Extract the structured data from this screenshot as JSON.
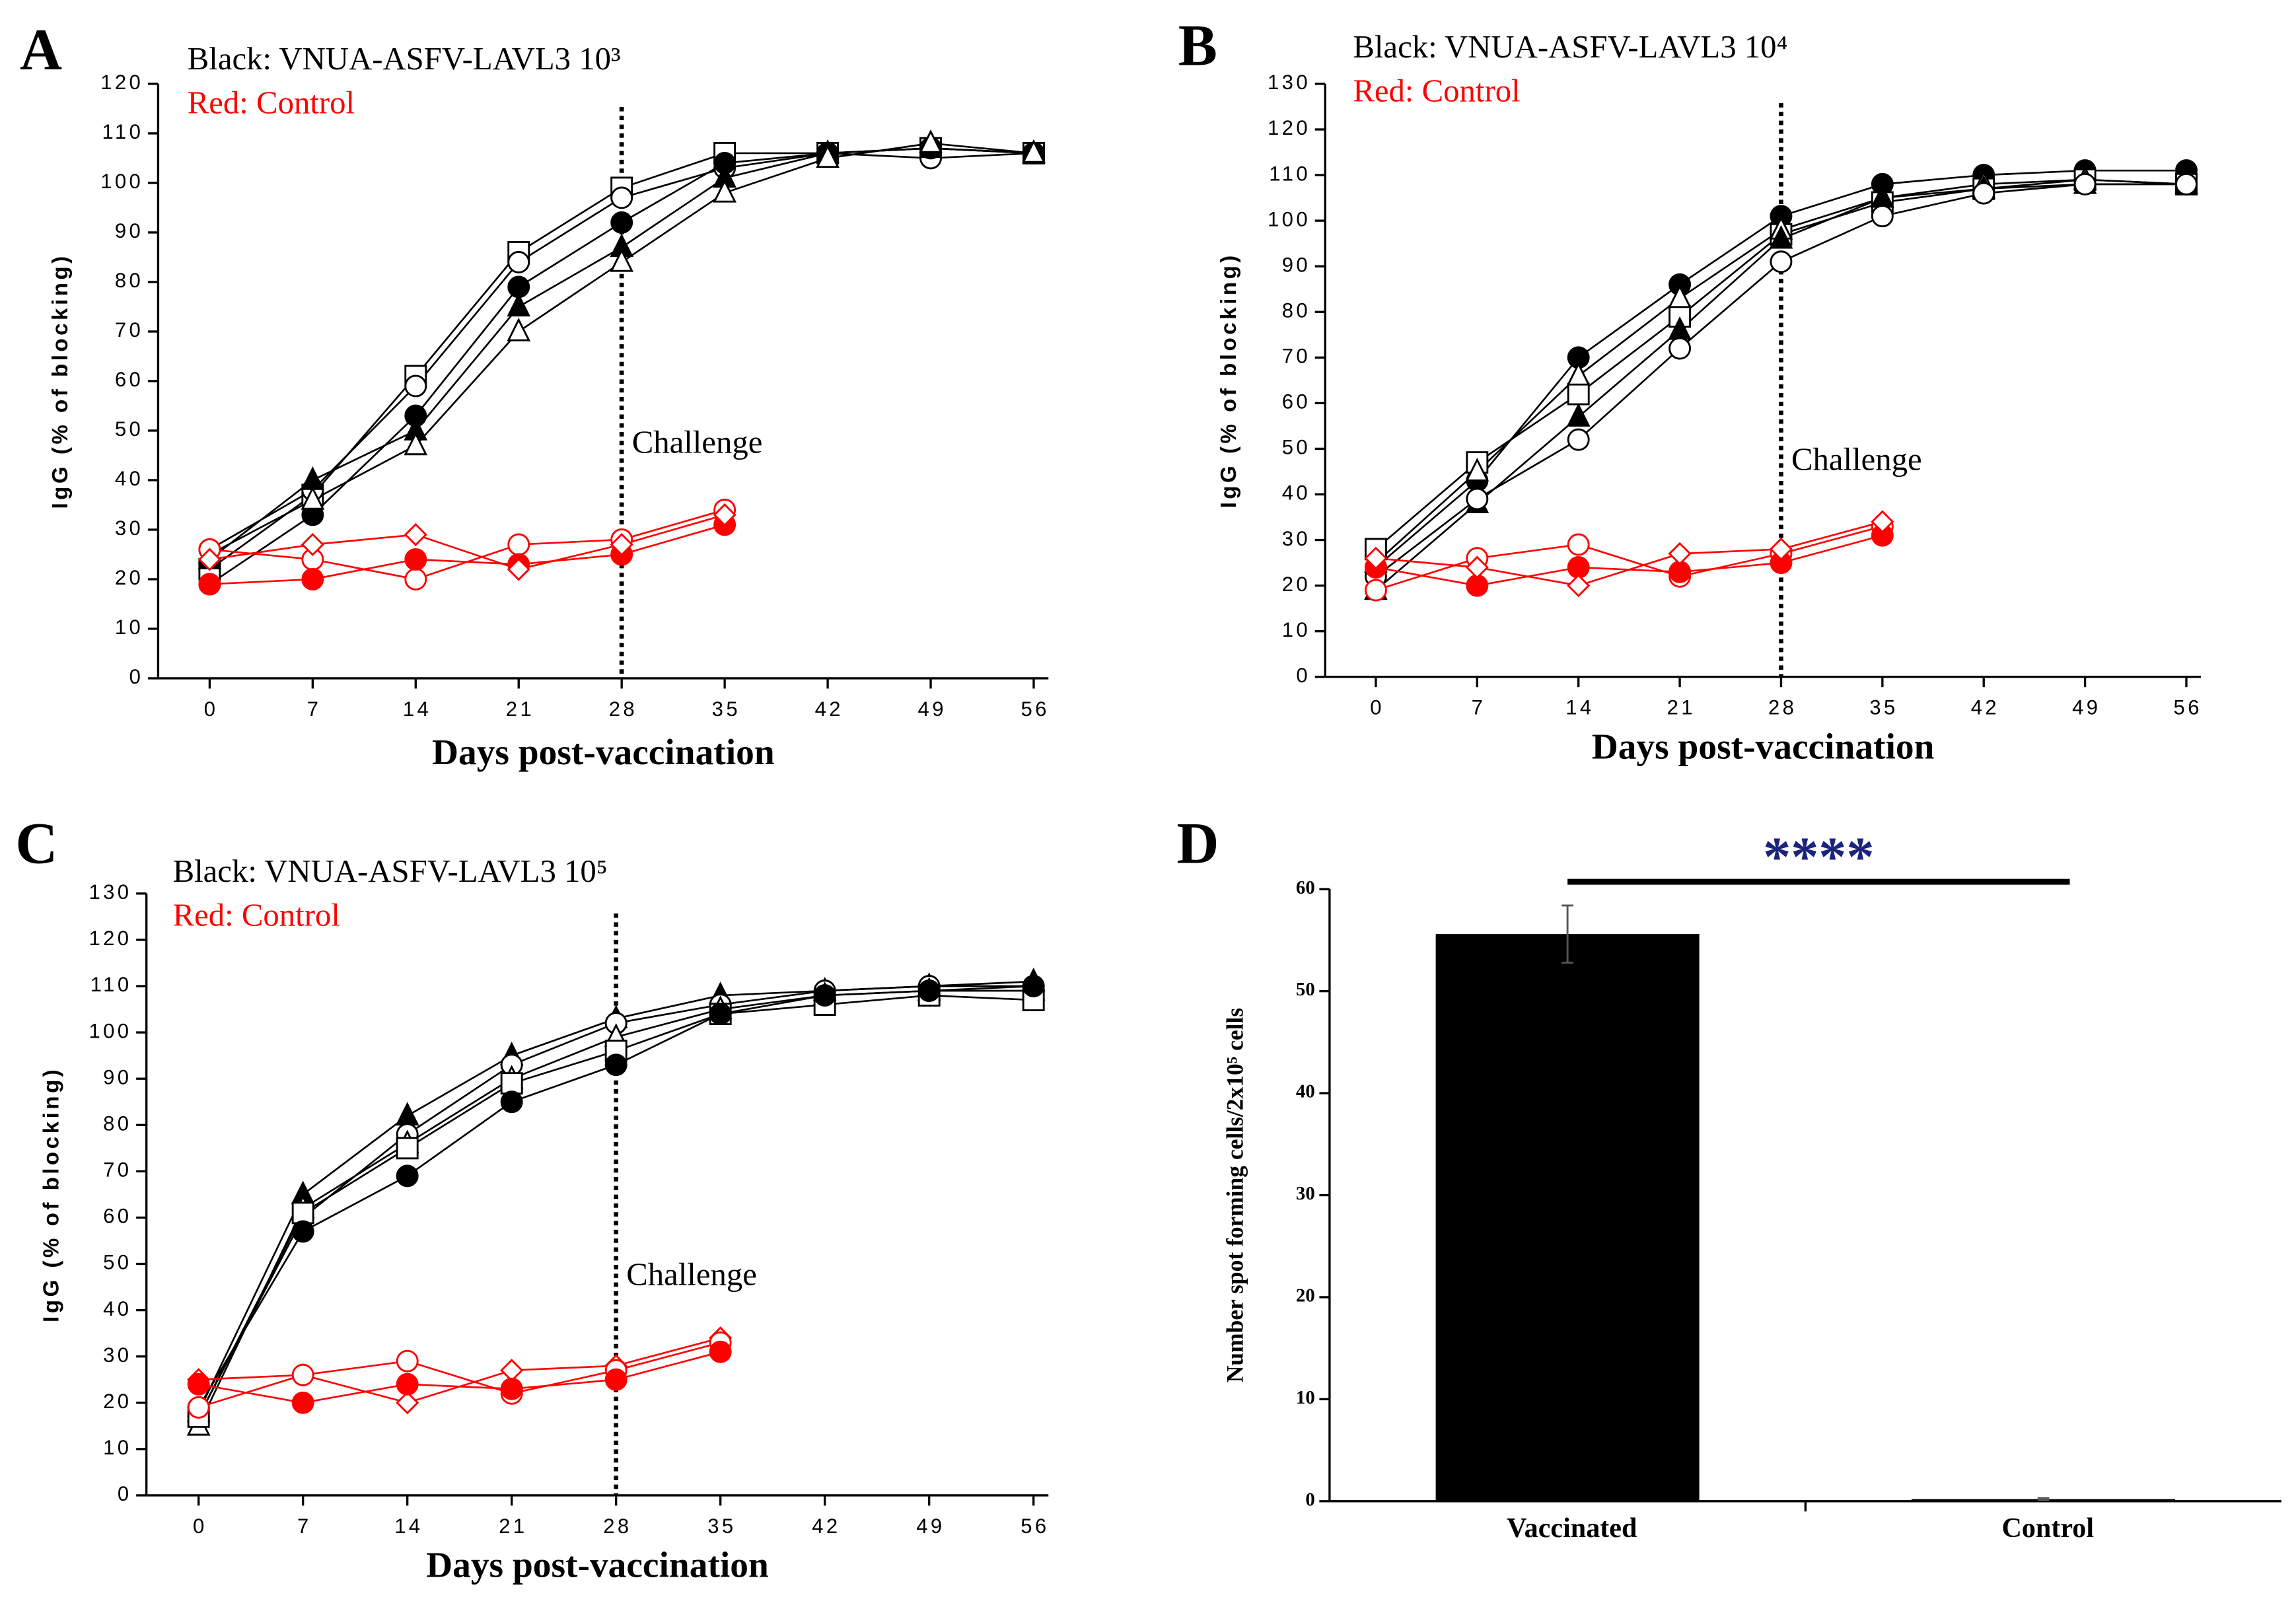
{
  "chart_data": [
    {
      "type": "line",
      "label": "A",
      "notes": [
        {
          "text": "Black: VNUA-ASFV-LAVL3 10³",
          "color": "#000000"
        },
        {
          "text": "Red: Control",
          "color": "#ff0000"
        }
      ],
      "x_label": "Days post-vaccination",
      "y_label": "IgG  (% of blocking)",
      "x": [
        0,
        7,
        14,
        21,
        28,
        35,
        42,
        49,
        56
      ],
      "xlim": [
        -3.5,
        57
      ],
      "xticks": [
        0,
        7,
        14,
        21,
        28,
        35,
        42,
        49,
        56
      ],
      "ylim": [
        0,
        120
      ],
      "yticks": [
        0,
        10,
        20,
        30,
        40,
        50,
        60,
        70,
        80,
        90,
        100,
        110,
        120
      ],
      "annotations": [
        {
          "x": 28,
          "text": "Challenge"
        }
      ],
      "series": [
        {
          "color": "#000000",
          "marker": "square",
          "filled": false,
          "values": [
            22,
            37,
            61,
            86,
            99,
            106,
            106,
            107,
            106
          ]
        },
        {
          "color": "#000000",
          "marker": "circle",
          "filled": false,
          "values": [
            26,
            38,
            59,
            84,
            97,
            103,
            106,
            105,
            106
          ]
        },
        {
          "color": "#000000",
          "marker": "circle",
          "filled": true,
          "values": [
            19,
            33,
            53,
            79,
            92,
            104,
            106,
            107,
            106
          ]
        },
        {
          "color": "#000000",
          "marker": "triangle",
          "filled": true,
          "values": [
            24,
            40,
            50,
            75,
            87,
            101,
            106,
            107,
            106
          ]
        },
        {
          "color": "#000000",
          "marker": "triangle",
          "filled": false,
          "values": [
            25,
            36,
            47,
            70,
            84,
            98,
            105,
            108,
            106
          ]
        },
        {
          "color": "#ff0000",
          "marker": "circle",
          "filled": false,
          "values": [
            26,
            24,
            20,
            27,
            28,
            34,
            null,
            null,
            null
          ]
        },
        {
          "color": "#ff0000",
          "marker": "circle",
          "filled": true,
          "values": [
            19,
            20,
            24,
            23,
            25,
            31,
            null,
            null,
            null
          ]
        },
        {
          "color": "#ff0000",
          "marker": "diamond",
          "filled": false,
          "values": [
            24,
            27,
            29,
            22,
            27,
            33,
            null,
            null,
            null
          ]
        }
      ]
    },
    {
      "type": "line",
      "label": "B",
      "notes": [
        {
          "text": "Black: VNUA-ASFV-LAVL3 10⁴",
          "color": "#000000"
        },
        {
          "text": "Red: Control",
          "color": "#ff0000"
        }
      ],
      "x_label": "Days post-vaccination",
      "y_label": "IgG  (% of blocking)",
      "x": [
        0,
        7,
        14,
        21,
        28,
        35,
        42,
        49,
        56
      ],
      "xlim": [
        -3.5,
        57
      ],
      "xticks": [
        0,
        7,
        14,
        21,
        28,
        35,
        42,
        49,
        56
      ],
      "ylim": [
        0,
        130
      ],
      "yticks": [
        0,
        10,
        20,
        30,
        40,
        50,
        60,
        70,
        80,
        90,
        100,
        110,
        120,
        130
      ],
      "annotations": [
        {
          "x": 28,
          "text": "Challenge"
        }
      ],
      "series": [
        {
          "color": "#000000",
          "marker": "circle",
          "filled": true,
          "values": [
            24,
            43,
            70,
            86,
            101,
            108,
            110,
            111,
            111
          ]
        },
        {
          "color": "#000000",
          "marker": "square",
          "filled": false,
          "values": [
            28,
            47,
            62,
            79,
            97,
            104,
            107,
            109,
            108
          ]
        },
        {
          "color": "#000000",
          "marker": "triangle",
          "filled": false,
          "values": [
            25,
            45,
            66,
            83,
            98,
            105,
            108,
            109,
            108
          ]
        },
        {
          "color": "#000000",
          "marker": "triangle",
          "filled": true,
          "values": [
            19,
            38,
            57,
            76,
            96,
            105,
            107,
            108,
            108
          ]
        },
        {
          "color": "#000000",
          "marker": "circle",
          "filled": false,
          "values": [
            22,
            39,
            52,
            72,
            91,
            101,
            106,
            108,
            108
          ]
        },
        {
          "color": "#ff0000",
          "marker": "circle",
          "filled": false,
          "values": [
            19,
            26,
            29,
            22,
            27,
            33,
            null,
            null,
            null
          ]
        },
        {
          "color": "#ff0000",
          "marker": "circle",
          "filled": true,
          "values": [
            24,
            20,
            24,
            23,
            25,
            31,
            null,
            null,
            null
          ]
        },
        {
          "color": "#ff0000",
          "marker": "diamond",
          "filled": false,
          "values": [
            26,
            24,
            20,
            27,
            28,
            34,
            null,
            null,
            null
          ]
        }
      ]
    },
    {
      "type": "line",
      "label": "C",
      "notes": [
        {
          "text": "Black: VNUA-ASFV-LAVL3 10⁵",
          "color": "#000000"
        },
        {
          "text": "Red: Control",
          "color": "#ff0000"
        }
      ],
      "x_label": "Days post-vaccination",
      "y_label": "IgG  (% of blocking)",
      "x": [
        0,
        7,
        14,
        21,
        28,
        35,
        42,
        49,
        56
      ],
      "xlim": [
        -3.5,
        57
      ],
      "xticks": [
        0,
        7,
        14,
        21,
        28,
        35,
        42,
        49,
        56
      ],
      "ylim": [
        0,
        130
      ],
      "yticks": [
        0,
        10,
        20,
        30,
        40,
        50,
        60,
        70,
        80,
        90,
        100,
        110,
        120,
        130
      ],
      "annotations": [
        {
          "x": 28,
          "text": "Challenge"
        }
      ],
      "series": [
        {
          "color": "#000000",
          "marker": "triangle",
          "filled": true,
          "values": [
            18,
            65,
            82,
            95,
            103,
            108,
            109,
            110,
            111
          ]
        },
        {
          "color": "#000000",
          "marker": "circle",
          "filled": false,
          "values": [
            17,
            60,
            78,
            93,
            102,
            106,
            109,
            110,
            110
          ]
        },
        {
          "color": "#000000",
          "marker": "triangle",
          "filled": false,
          "values": [
            15,
            62,
            76,
            90,
            99,
            105,
            108,
            109,
            109
          ]
        },
        {
          "color": "#000000",
          "marker": "square",
          "filled": false,
          "values": [
            17,
            61,
            75,
            89,
            96,
            104,
            106,
            108,
            107
          ]
        },
        {
          "color": "#000000",
          "marker": "circle",
          "filled": true,
          "values": [
            19,
            57,
            69,
            85,
            93,
            104,
            108,
            109,
            110
          ]
        },
        {
          "color": "#ff0000",
          "marker": "diamond",
          "filled": false,
          "values": [
            25,
            26,
            20,
            27,
            28,
            34,
            null,
            null,
            null
          ]
        },
        {
          "color": "#ff0000",
          "marker": "circle",
          "filled": false,
          "values": [
            19,
            26,
            29,
            22,
            27,
            33,
            null,
            null,
            null
          ]
        },
        {
          "color": "#ff0000",
          "marker": "circle",
          "filled": true,
          "values": [
            24,
            20,
            24,
            23,
            25,
            31,
            null,
            null,
            null
          ]
        }
      ]
    },
    {
      "type": "bar",
      "label": "D",
      "y_label": "Number spot forming cells/2x10⁵ cells",
      "categories": [
        "Vaccinated",
        "Control"
      ],
      "values": [
        55.6,
        0.2
      ],
      "errors": [
        2.8,
        0.1
      ],
      "color": "#000000",
      "significance": "****",
      "significance_color": "#1a237e",
      "ylim": [
        0,
        60
      ],
      "yticks": [
        0,
        10,
        20,
        30,
        40,
        50,
        60
      ]
    }
  ]
}
